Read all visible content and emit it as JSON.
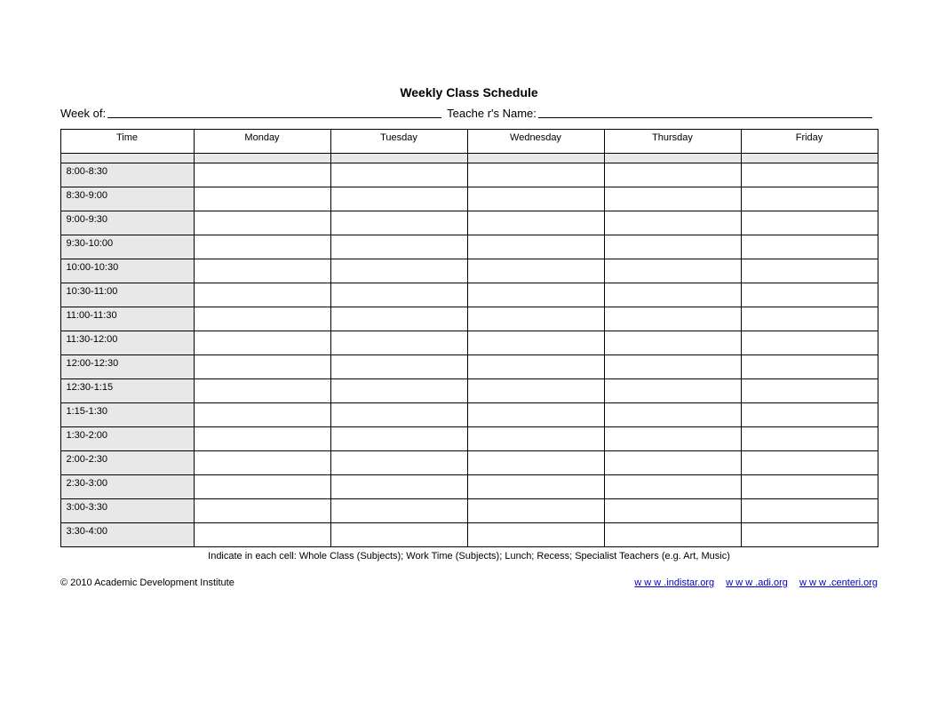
{
  "title": "Weekly Class Schedule",
  "header": {
    "week_of_label": "Week of:",
    "teacher_label": "Teache r's Name:"
  },
  "table": {
    "columns": [
      "Time",
      "Monday",
      "Tuesday",
      "Wednesday",
      "Thursday",
      "Friday"
    ],
    "time_slots": [
      "8:00-8:30",
      "8:30-9:00",
      "9:00-9:30",
      "9:30-10:00",
      "10:00-10:30",
      "10:30-11:00",
      "11:00-11:30",
      "11:30-12:00",
      "12:00-12:30",
      "12:30-1:15",
      "1:15-1:30",
      "1:30-2:00",
      "2:00-2:30",
      "2:30-3:00",
      "3:00-3:30",
      "3:30-4:00"
    ],
    "time_col_bg": "#e8e8e8",
    "border_color": "#000000",
    "caption": "Indicate in each cell: Whole Class (Subjects); Work Time (Subjects); Lunch; Recess; Specialist Teachers (e.g. Art, Music)"
  },
  "footer": {
    "copyright": "© 2010 Academic Development Institute",
    "links": [
      {
        "label": "w w w .indistar.org"
      },
      {
        "label": "w w w .adi.org"
      },
      {
        "label": "w w w .centeri.org"
      }
    ]
  }
}
